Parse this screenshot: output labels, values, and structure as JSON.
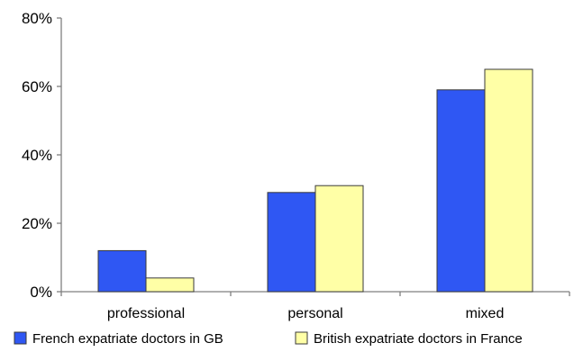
{
  "chart_data": {
    "type": "bar",
    "categories": [
      "professional",
      "personal",
      "mixed"
    ],
    "series": [
      {
        "name": "French expatriate doctors in GB",
        "values": [
          12,
          29,
          59
        ],
        "color": "#2f57f3"
      },
      {
        "name": "British expatriate doctors in France",
        "values": [
          4,
          31,
          65
        ],
        "color": "#ffffa6"
      }
    ],
    "ylim": [
      0,
      80
    ],
    "yticks": [
      0,
      20,
      40,
      60,
      80
    ],
    "ytick_format": "percent",
    "grid": false,
    "legend_position": "bottom",
    "xlabel": "",
    "ylabel": "",
    "title": ""
  }
}
